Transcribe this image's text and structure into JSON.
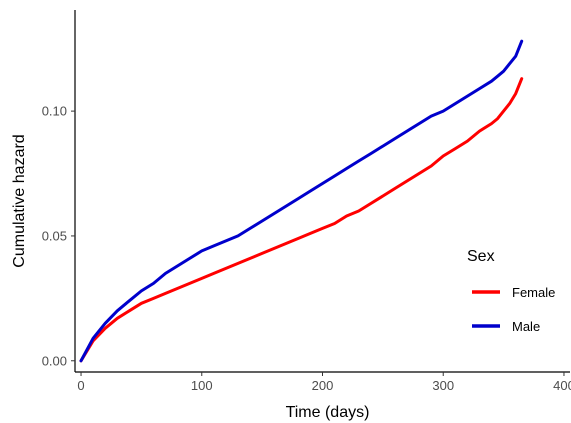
{
  "chart_data": {
    "type": "line",
    "title": "",
    "xlabel": "Time (days)",
    "ylabel": "Cumulative hazard",
    "xlim": [
      -5,
      405
    ],
    "ylim": [
      -0.0045,
      0.1405
    ],
    "x_ticks": [
      0,
      100,
      200,
      300,
      400
    ],
    "x_tick_labels": [
      "0",
      "100",
      "200",
      "300",
      "400"
    ],
    "y_ticks": [
      0.0,
      0.05,
      0.1
    ],
    "y_tick_labels": [
      "0.00",
      "0.05",
      "0.10"
    ],
    "grid": false,
    "legend": {
      "title": "Sex",
      "position": "right"
    },
    "series": [
      {
        "name": "Female",
        "color": "#ff0000",
        "x": [
          0,
          10,
          20,
          30,
          40,
          50,
          60,
          70,
          80,
          90,
          100,
          110,
          120,
          130,
          140,
          150,
          160,
          170,
          180,
          190,
          200,
          210,
          220,
          230,
          240,
          250,
          260,
          270,
          280,
          290,
          300,
          310,
          320,
          330,
          340,
          345,
          350,
          355,
          360,
          365
        ],
        "y": [
          0.0,
          0.008,
          0.013,
          0.017,
          0.02,
          0.023,
          0.025,
          0.027,
          0.029,
          0.031,
          0.033,
          0.035,
          0.037,
          0.039,
          0.041,
          0.043,
          0.045,
          0.047,
          0.049,
          0.051,
          0.053,
          0.055,
          0.058,
          0.06,
          0.063,
          0.066,
          0.069,
          0.072,
          0.075,
          0.078,
          0.082,
          0.085,
          0.088,
          0.092,
          0.095,
          0.097,
          0.1,
          0.103,
          0.107,
          0.113
        ]
      },
      {
        "name": "Male",
        "color": "#0000cc",
        "x": [
          0,
          10,
          20,
          30,
          40,
          50,
          60,
          70,
          80,
          90,
          100,
          110,
          120,
          130,
          140,
          150,
          160,
          170,
          180,
          190,
          200,
          210,
          220,
          230,
          240,
          250,
          260,
          270,
          280,
          290,
          300,
          310,
          320,
          330,
          340,
          345,
          350,
          355,
          360,
          365
        ],
        "y": [
          0.0,
          0.009,
          0.015,
          0.02,
          0.024,
          0.028,
          0.031,
          0.035,
          0.038,
          0.041,
          0.044,
          0.046,
          0.048,
          0.05,
          0.053,
          0.056,
          0.059,
          0.062,
          0.065,
          0.068,
          0.071,
          0.074,
          0.077,
          0.08,
          0.083,
          0.086,
          0.089,
          0.092,
          0.095,
          0.098,
          0.1,
          0.103,
          0.106,
          0.109,
          0.112,
          0.114,
          0.116,
          0.119,
          0.122,
          0.128
        ]
      }
    ]
  }
}
